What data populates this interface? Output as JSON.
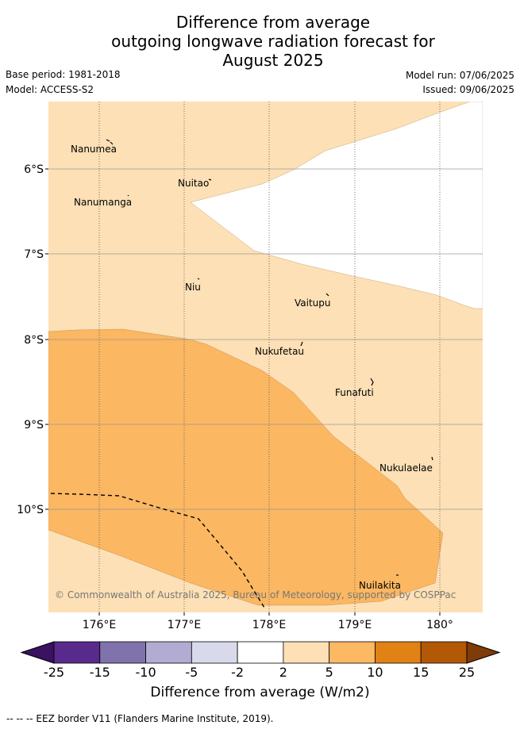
{
  "header": {
    "title_lines": [
      "Difference from average",
      "outgoing longwave radiation forecast for",
      "August 2025"
    ],
    "base_period": "Base period: 1981-2018",
    "model": "Model: ACCESS-S2",
    "model_run": "Model run: 07/06/2025",
    "issued": "Issued: 09/06/2025"
  },
  "map": {
    "lon_ticks": [
      "176°E",
      "177°E",
      "178°E",
      "179°E",
      "180°"
    ],
    "lat_ticks": [
      "6°S",
      "7°S",
      "8°S",
      "9°S",
      "10°S"
    ],
    "copyright": "© Commonwealth of Australia 2025, Bureau of Meteorology, supported by COSPPac",
    "islands": [
      {
        "name": "Nanumea"
      },
      {
        "name": "Nuitao"
      },
      {
        "name": "Nanumanga"
      },
      {
        "name": "Niu"
      },
      {
        "name": "Vaitupu"
      },
      {
        "name": "Nukufetau"
      },
      {
        "name": "Funafuti"
      },
      {
        "name": "Nukulaelae"
      },
      {
        "name": "Nuilakita"
      }
    ],
    "colors": {
      "light_orange": "#fde0b5",
      "mid_orange": "#fbb761",
      "white": "#ffffff"
    }
  },
  "colorbar": {
    "labels": [
      "-25",
      "-15",
      "-10",
      "-5",
      "-2",
      "2",
      "5",
      "10",
      "15",
      "25"
    ],
    "colors": [
      "#3b1161",
      "#572a8c",
      "#8073ac",
      "#b2abd2",
      "#d8daeb",
      "#ffffff",
      "#fee0b6",
      "#fdb863",
      "#e08214",
      "#b35806",
      "#7f3b08"
    ],
    "label": "Difference from average (W/m2)"
  },
  "footer": {
    "legend_text": "--  --  -- EEZ border V11 (Flanders Marine Institute, 2019)."
  }
}
